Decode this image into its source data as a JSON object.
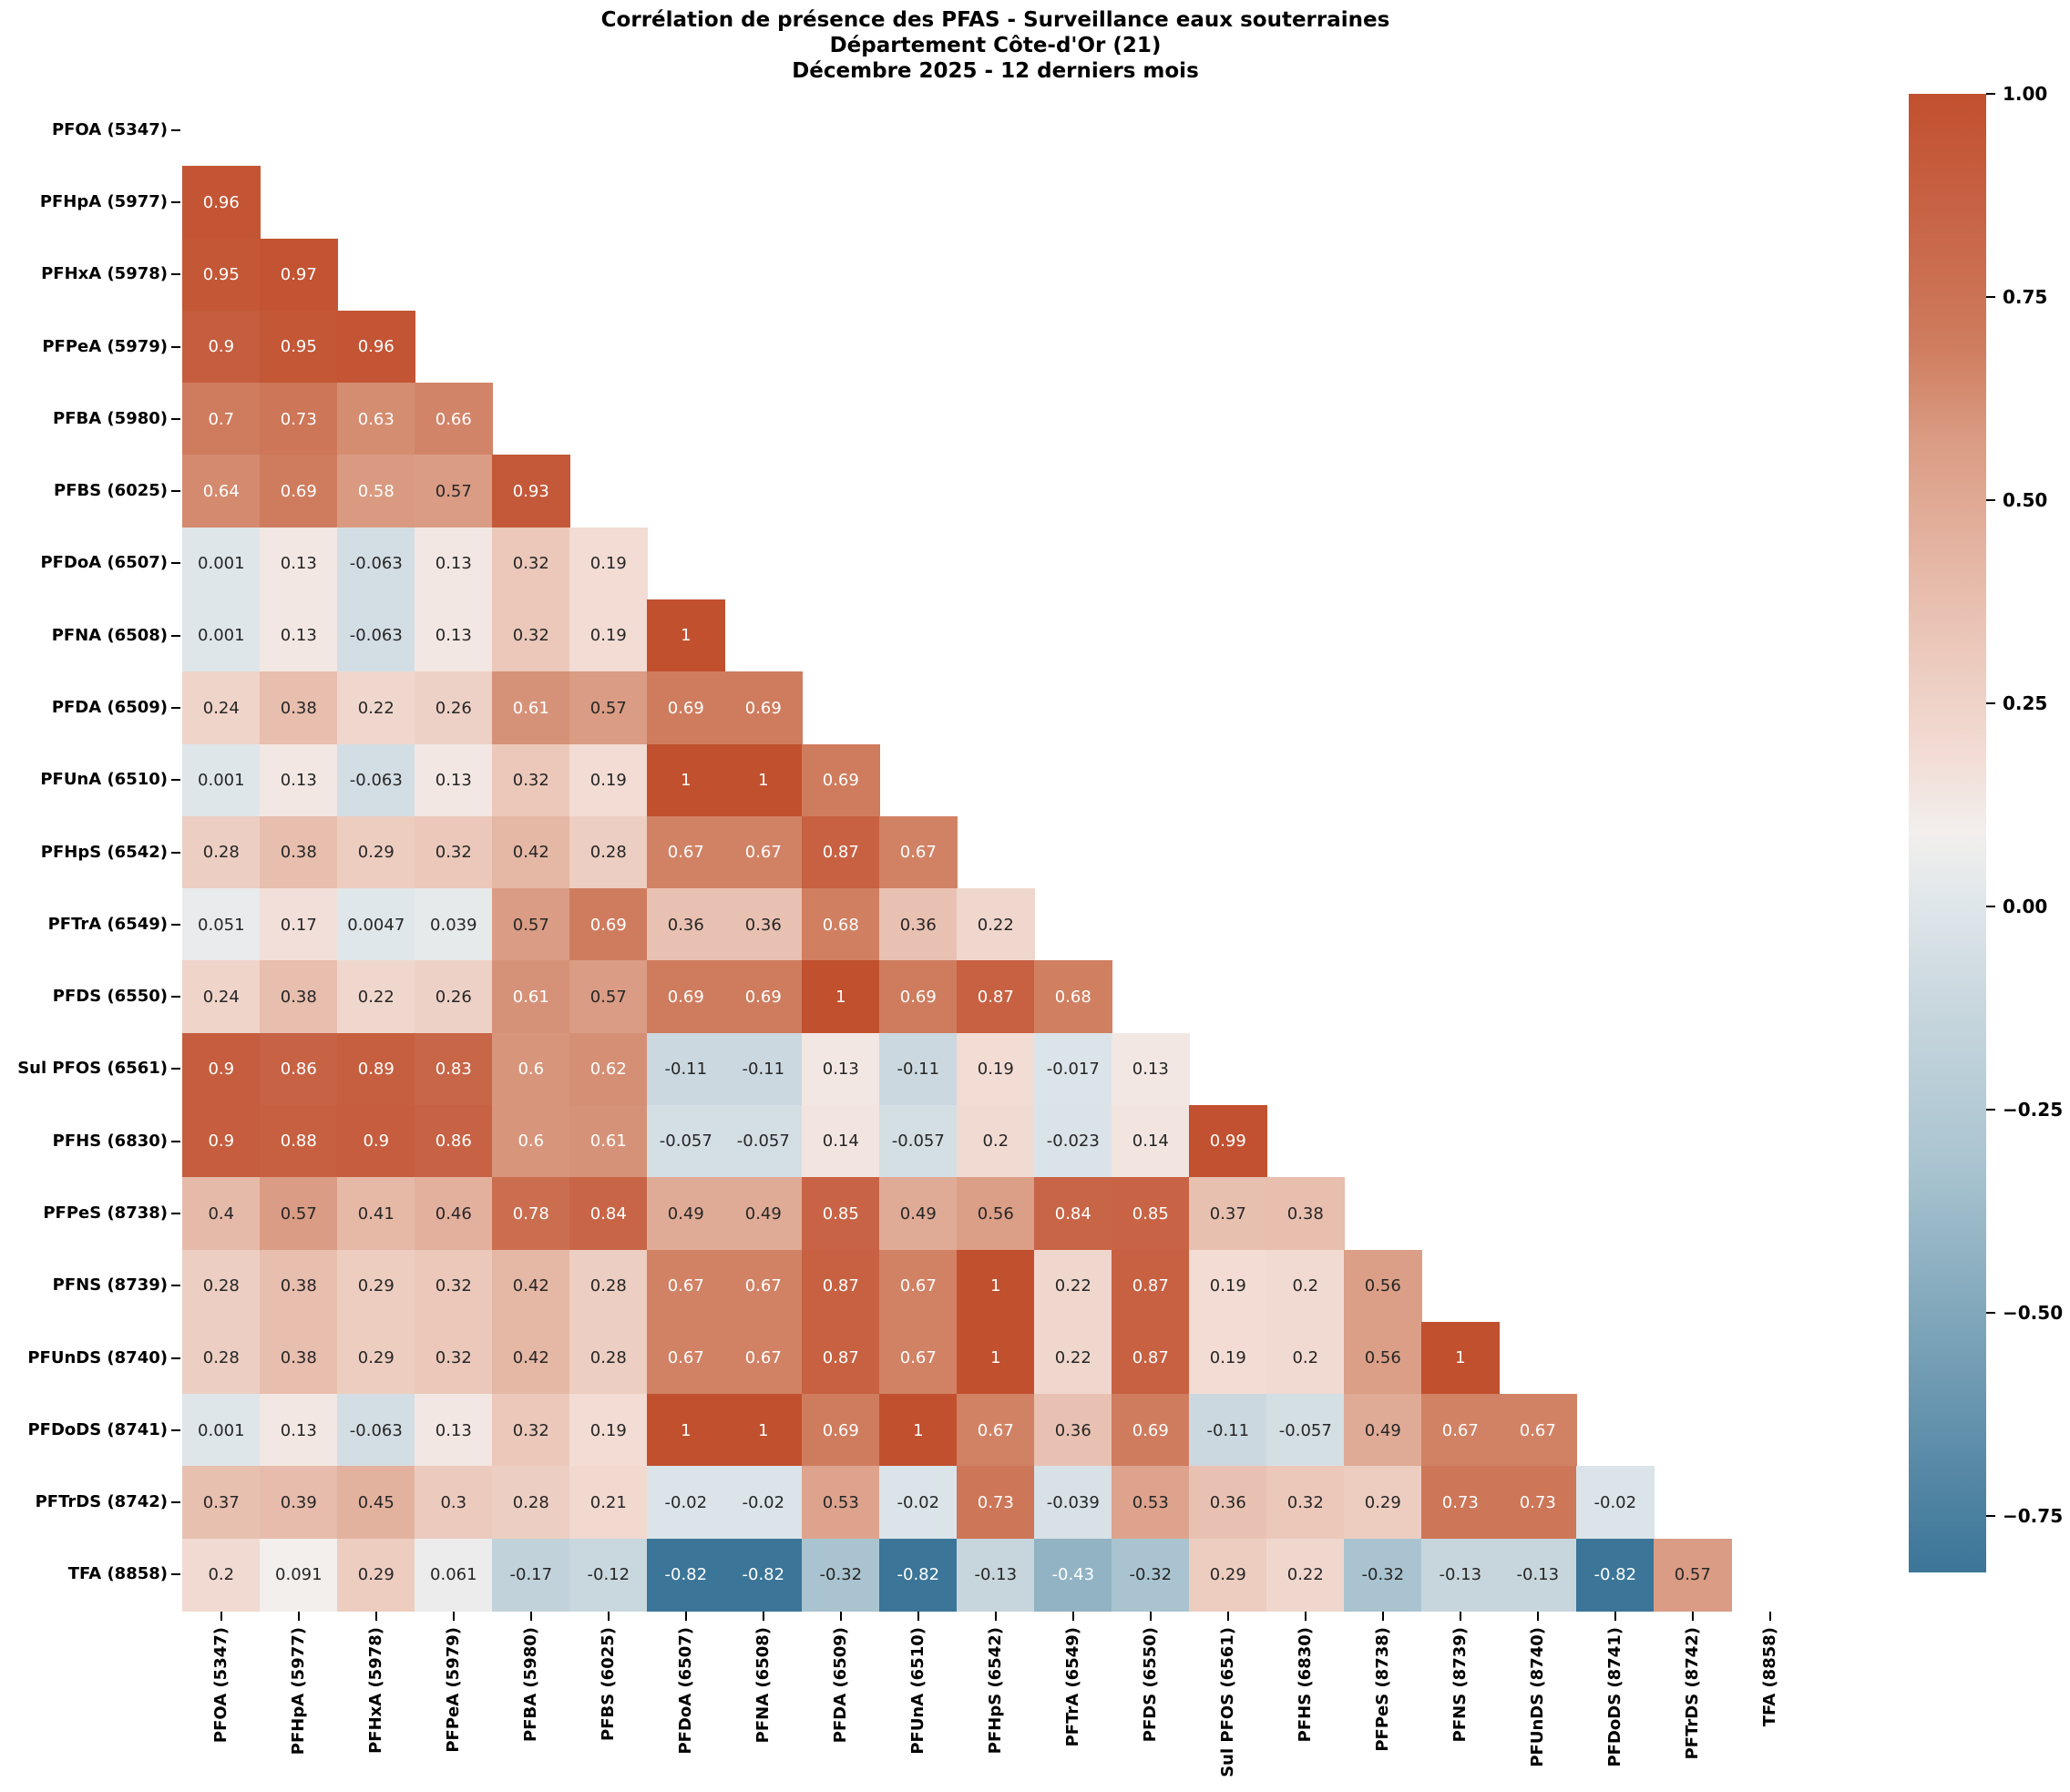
{
  "title": {
    "lines": [
      "Corrélation de présence des PFAS - Surveillance eaux souterraines",
      "Département Côte-d'Or (21)",
      "Décembre 2025 - 12 derniers mois"
    ]
  },
  "chart_data": {
    "type": "heatmap",
    "subtype": "correlation-lower-triangle",
    "labels": [
      "PFOA (5347)",
      "PFHpA (5977)",
      "PFHxA (5978)",
      "PFPeA (5979)",
      "PFBA (5980)",
      "PFBS (6025)",
      "PFDoA (6507)",
      "PFNA (6508)",
      "PFDA (6509)",
      "PFUnA (6510)",
      "PFHpS (6542)",
      "PFTrA (6549)",
      "PFDS (6550)",
      "Sul PFOS (6561)",
      "PFHS (6830)",
      "PFPeS (8738)",
      "PFNS (8739)",
      "PFUnDS (8740)",
      "PFDoDS (8741)",
      "PFTrDS (8742)",
      "TFA (8858)"
    ],
    "rows": [
      [],
      [
        "0.96"
      ],
      [
        "0.95",
        "0.97"
      ],
      [
        "0.9",
        "0.95",
        "0.96"
      ],
      [
        "0.7",
        "0.73",
        "0.63",
        "0.66"
      ],
      [
        "0.64",
        "0.69",
        "0.58",
        "0.57",
        "0.93"
      ],
      [
        "0.001",
        "0.13",
        "-0.063",
        "0.13",
        "0.32",
        "0.19"
      ],
      [
        "0.001",
        "0.13",
        "-0.063",
        "0.13",
        "0.32",
        "0.19",
        "1"
      ],
      [
        "0.24",
        "0.38",
        "0.22",
        "0.26",
        "0.61",
        "0.57",
        "0.69",
        "0.69"
      ],
      [
        "0.001",
        "0.13",
        "-0.063",
        "0.13",
        "0.32",
        "0.19",
        "1",
        "1",
        "0.69"
      ],
      [
        "0.28",
        "0.38",
        "0.29",
        "0.32",
        "0.42",
        "0.28",
        "0.67",
        "0.67",
        "0.87",
        "0.67"
      ],
      [
        "0.051",
        "0.17",
        "0.0047",
        "0.039",
        "0.57",
        "0.69",
        "0.36",
        "0.36",
        "0.68",
        "0.36",
        "0.22"
      ],
      [
        "0.24",
        "0.38",
        "0.22",
        "0.26",
        "0.61",
        "0.57",
        "0.69",
        "0.69",
        "1",
        "0.69",
        "0.87",
        "0.68"
      ],
      [
        "0.9",
        "0.86",
        "0.89",
        "0.83",
        "0.6",
        "0.62",
        "-0.11",
        "-0.11",
        "0.13",
        "-0.11",
        "0.19",
        "-0.017",
        "0.13"
      ],
      [
        "0.9",
        "0.88",
        "0.9",
        "0.86",
        "0.6",
        "0.61",
        "-0.057",
        "-0.057",
        "0.14",
        "-0.057",
        "0.2",
        "-0.023",
        "0.14",
        "0.99"
      ],
      [
        "0.4",
        "0.57",
        "0.41",
        "0.46",
        "0.78",
        "0.84",
        "0.49",
        "0.49",
        "0.85",
        "0.49",
        "0.56",
        "0.84",
        "0.85",
        "0.37",
        "0.38"
      ],
      [
        "0.28",
        "0.38",
        "0.29",
        "0.32",
        "0.42",
        "0.28",
        "0.67",
        "0.67",
        "0.87",
        "0.67",
        "1",
        "0.22",
        "0.87",
        "0.19",
        "0.2",
        "0.56"
      ],
      [
        "0.28",
        "0.38",
        "0.29",
        "0.32",
        "0.42",
        "0.28",
        "0.67",
        "0.67",
        "0.87",
        "0.67",
        "1",
        "0.22",
        "0.87",
        "0.19",
        "0.2",
        "0.56",
        "1"
      ],
      [
        "0.001",
        "0.13",
        "-0.063",
        "0.13",
        "0.32",
        "0.19",
        "1",
        "1",
        "0.69",
        "1",
        "0.67",
        "0.36",
        "0.69",
        "-0.11",
        "-0.057",
        "0.49",
        "0.67",
        "0.67"
      ],
      [
        "0.37",
        "0.39",
        "0.45",
        "0.3",
        "0.28",
        "0.21",
        "-0.02",
        "-0.02",
        "0.53",
        "-0.02",
        "0.73",
        "-0.039",
        "0.53",
        "0.36",
        "0.32",
        "0.29",
        "0.73",
        "0.73",
        "-0.02"
      ],
      [
        "0.2",
        "0.091",
        "0.29",
        "0.061",
        "-0.17",
        "-0.12",
        "-0.82",
        "-0.82",
        "-0.32",
        "-0.82",
        "-0.13",
        "-0.43",
        "-0.32",
        "0.29",
        "0.22",
        "-0.32",
        "-0.13",
        "-0.13",
        "-0.82",
        "0.57"
      ]
    ],
    "colorbar": {
      "vmin": -0.82,
      "vmax": 1.0,
      "tick_values": [
        1.0,
        0.75,
        0.5,
        0.25,
        0.0,
        -0.25,
        -0.5,
        -0.75
      ],
      "tick_labels": [
        "1.00",
        "0.75",
        "0.50",
        "0.25",
        "0.00",
        "−0.25",
        "−0.50",
        "−0.75"
      ],
      "position": "right"
    },
    "colormap_anchors": [
      [
        0.0,
        "#3b7598"
      ],
      [
        0.275,
        "#a9c4d0"
      ],
      [
        0.385,
        "#c9d7de"
      ],
      [
        0.45,
        "#dee6ea"
      ],
      [
        0.5,
        "#f2efed"
      ],
      [
        0.55,
        "#f2ddd6"
      ],
      [
        0.63,
        "#ebc7b9"
      ],
      [
        0.7,
        "#e3b19e"
      ],
      [
        0.77,
        "#d99a81"
      ],
      [
        0.83,
        "#cf7c5e"
      ],
      [
        0.9,
        "#c9684a"
      ],
      [
        1.0,
        "#c1502f"
      ]
    ],
    "annot_text": {
      "white_if_gte": 0.58,
      "white_if_lte": -0.43,
      "white": "#ffffff",
      "dark": "#262626"
    },
    "axis_text_color": "#000000",
    "background_color": "#ffffff",
    "grid": false,
    "diagonal_shown": false
  }
}
